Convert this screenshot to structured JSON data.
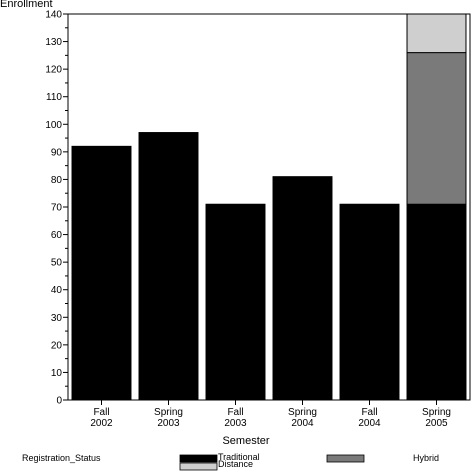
{
  "chart_data": {
    "type": "bar",
    "stacked": true,
    "ylabel": "Enrollment",
    "xlabel": "Semester",
    "ylim": [
      0,
      140
    ],
    "ytick_step": 10,
    "categories": [
      [
        "Fall",
        "2002"
      ],
      [
        "Spring",
        "2003"
      ],
      [
        "Fall",
        "2003"
      ],
      [
        "Spring",
        "2004"
      ],
      [
        "Fall",
        "2004"
      ],
      [
        "Spring",
        "2005"
      ]
    ],
    "series": [
      {
        "name": "Traditional",
        "color": "#000000",
        "values": [
          92,
          97,
          71,
          81,
          71,
          71
        ]
      },
      {
        "name": "Hybrid",
        "color": "#7a7a7a",
        "values": [
          0,
          0,
          0,
          0,
          0,
          55
        ]
      },
      {
        "name": "Distance",
        "color": "#cfcfcf",
        "values": [
          0,
          0,
          0,
          0,
          0,
          14
        ]
      }
    ],
    "legend_title": "Registration_Status",
    "legend_position": "bottom"
  }
}
